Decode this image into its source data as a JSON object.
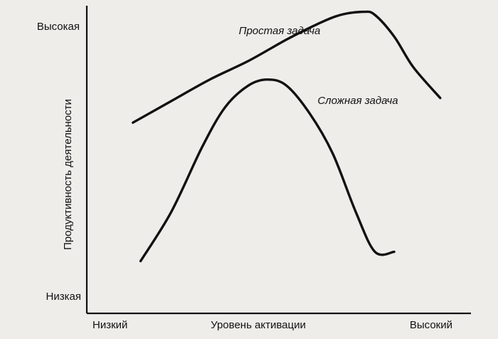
{
  "chart_data": {
    "type": "line",
    "xlabel": "Уровень активации",
    "ylabel": "Продуктивность деятельности",
    "x_tick_labels": {
      "low": "Низкий",
      "high": "Высокий"
    },
    "y_tick_labels": {
      "low": "Низкая",
      "high": "Высокая"
    },
    "xlim": [
      0,
      100
    ],
    "ylim": [
      0,
      100
    ],
    "grid": false,
    "legend": "none",
    "series": [
      {
        "name": "Простая задача",
        "x": [
          12,
          22,
          32,
          42,
          52,
          60,
          66,
          72,
          75,
          80,
          85,
          92
        ],
        "y": [
          62,
          69,
          76,
          82,
          89,
          94,
          97,
          98,
          97,
          90,
          80,
          70
        ]
      },
      {
        "name": "Сложная задача",
        "x": [
          14,
          22,
          30,
          36,
          42,
          47,
          52,
          58,
          64,
          70,
          75,
          80
        ],
        "y": [
          17,
          33,
          54,
          67,
          74,
          76,
          74,
          65,
          52,
          33,
          20,
          20
        ]
      }
    ]
  }
}
